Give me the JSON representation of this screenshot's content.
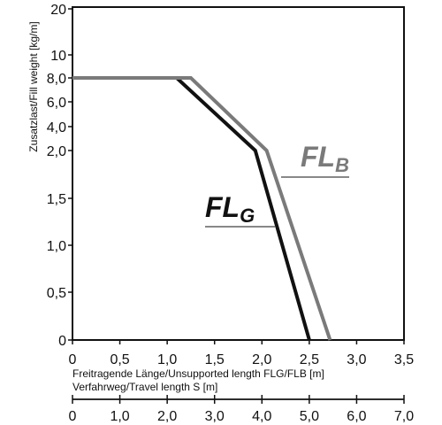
{
  "chart_data": {
    "type": "line",
    "title": "",
    "ylabel": "Zusatzlast/Fill weight [kg/m]",
    "xlabel": "Freitragende Länge/Unsupported length FLG/FLB [m]",
    "x2label": "Verfahrweg/Travel length S [m]",
    "xlim": [
      0,
      3.5
    ],
    "x2lim": [
      0,
      7.0
    ],
    "y_ticks": [
      "0",
      "0,5",
      "1,0",
      "1,5",
      "2,0",
      "4,0",
      "6,0",
      "8,0",
      "10",
      "20"
    ],
    "x_ticks": [
      "0",
      "0,5",
      "1,0",
      "1,5",
      "2,0",
      "2,5",
      "3,0",
      "3,5"
    ],
    "x_tick_values": [
      0,
      0.5,
      1.0,
      1.5,
      2.0,
      2.5,
      3.0,
      3.5
    ],
    "x2_ticks": [
      "0",
      "1,0",
      "2,0",
      "3,0",
      "4,0",
      "5,0",
      "6,0",
      "7,0"
    ],
    "y_scale": "piecewise (linear 0–2,0, compressed above 2,0)",
    "grid": false,
    "series": [
      {
        "label_main": "FL",
        "label_sub": "G",
        "color": "#111111",
        "points": [
          [
            0,
            8.0
          ],
          [
            1.1,
            8.0
          ],
          [
            1.93,
            2.0
          ],
          [
            2.5,
            0
          ]
        ]
      },
      {
        "label_main": "FL",
        "label_sub": "B",
        "color": "#7a7a7a",
        "points": [
          [
            0,
            8.0
          ],
          [
            1.25,
            8.0
          ],
          [
            2.05,
            2.0
          ],
          [
            2.72,
            0
          ]
        ]
      }
    ]
  }
}
